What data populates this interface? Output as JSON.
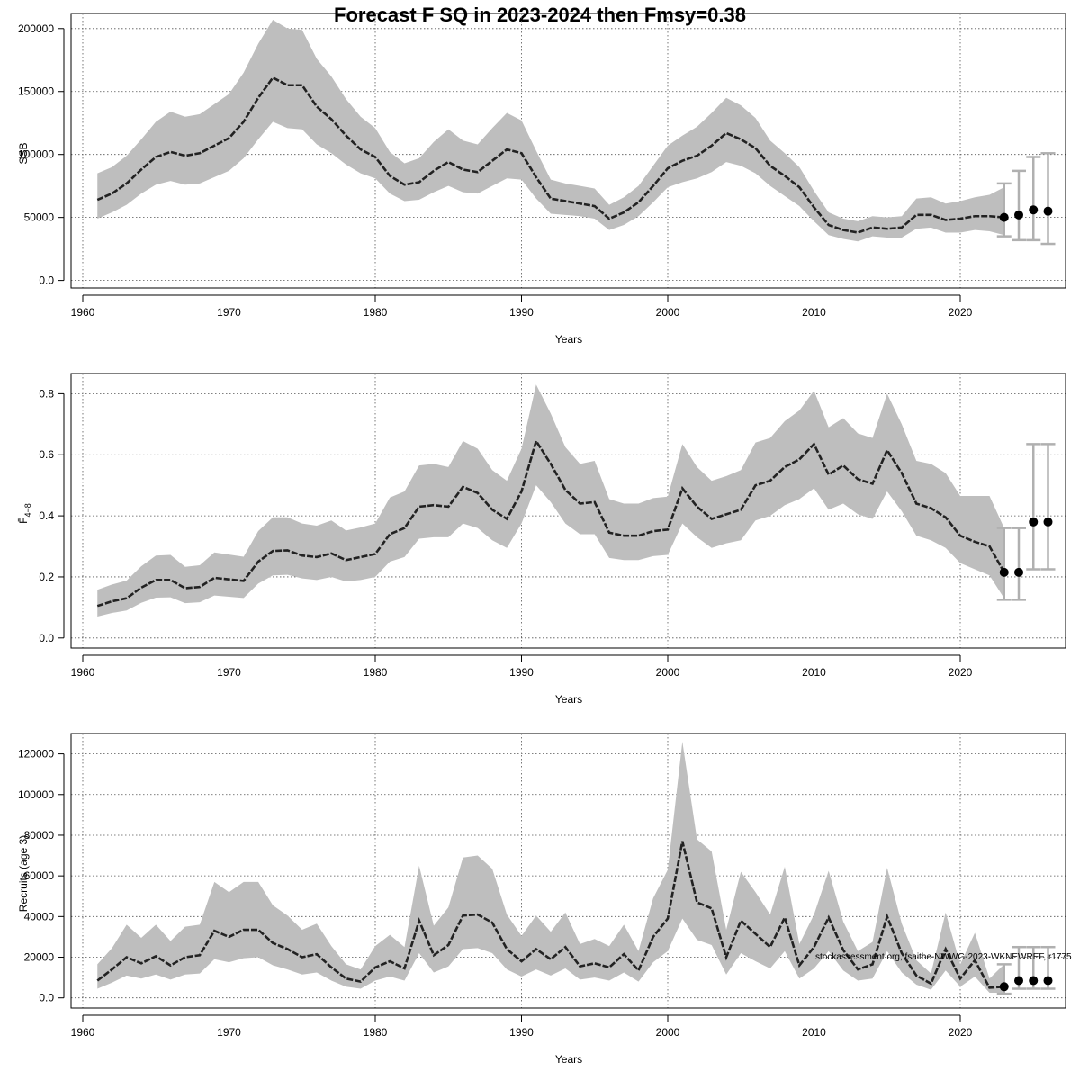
{
  "title": "Forecast F SQ in 2023-2024 then Fmsy=0.38",
  "watermark": "stockassessment.org, fsaithe-NWWG-2023-WKNEWREF, r1775",
  "chart_data": [
    {
      "id": "ssb",
      "type": "line",
      "xlabel": "Years",
      "ylabel": "SSB",
      "xlim": [
        1959.2,
        2027.2
      ],
      "ylim": [
        -6000,
        212000
      ],
      "xticks": [
        1960,
        1970,
        1980,
        1990,
        2000,
        2010,
        2020
      ],
      "yticks": [
        0,
        50000,
        100000,
        150000,
        200000
      ],
      "grid": true,
      "years": [
        1961,
        1962,
        1963,
        1964,
        1965,
        1966,
        1967,
        1968,
        1969,
        1970,
        1971,
        1972,
        1973,
        1974,
        1975,
        1976,
        1977,
        1978,
        1979,
        1980,
        1981,
        1982,
        1983,
        1984,
        1985,
        1986,
        1987,
        1988,
        1989,
        1990,
        1991,
        1992,
        1993,
        1994,
        1995,
        1996,
        1997,
        1998,
        1999,
        2000,
        2001,
        2002,
        2003,
        2004,
        2005,
        2006,
        2007,
        2008,
        2009,
        2010,
        2011,
        2012,
        2013,
        2014,
        2015,
        2016,
        2017,
        2018,
        2019,
        2020,
        2021,
        2022,
        2023
      ],
      "estimate": [
        64000,
        69000,
        77000,
        88000,
        98000,
        102000,
        99000,
        101000,
        107000,
        113000,
        126000,
        145000,
        161000,
        155000,
        155000,
        138000,
        128000,
        115000,
        104000,
        98000,
        83000,
        76000,
        78000,
        87000,
        94000,
        88000,
        86000,
        95000,
        104000,
        101000,
        82000,
        65000,
        63000,
        61000,
        59000,
        49000,
        54000,
        62000,
        75000,
        89000,
        95000,
        99000,
        107000,
        117000,
        112000,
        105000,
        91000,
        83000,
        74000,
        58000,
        44000,
        40000,
        38000,
        42000,
        41000,
        42000,
        52000,
        52000,
        48000,
        49000,
        51000,
        51000,
        50000
      ],
      "lower": [
        49000,
        54000,
        60000,
        69000,
        76000,
        79000,
        76000,
        77000,
        82000,
        87000,
        97000,
        112000,
        126000,
        121000,
        120000,
        108000,
        101000,
        92000,
        85000,
        81000,
        69000,
        63000,
        64000,
        70000,
        75000,
        70000,
        69000,
        75000,
        81000,
        80000,
        65000,
        53000,
        52000,
        51000,
        49000,
        40000,
        44000,
        51000,
        62000,
        74000,
        78000,
        81000,
        86000,
        94000,
        91000,
        85000,
        75000,
        67000,
        59000,
        47000,
        36000,
        33000,
        31000,
        35000,
        34000,
        34000,
        41000,
        42000,
        38000,
        38000,
        40000,
        39000,
        36000
      ],
      "upper": [
        85000,
        90000,
        99000,
        112000,
        126000,
        134000,
        130000,
        132000,
        140000,
        148000,
        165000,
        188000,
        207000,
        200000,
        199000,
        176000,
        162000,
        144000,
        130000,
        121000,
        102000,
        93000,
        97000,
        110000,
        120000,
        111000,
        108000,
        121000,
        133000,
        127000,
        103000,
        80000,
        77000,
        75000,
        73000,
        60000,
        66000,
        75000,
        91000,
        107000,
        115000,
        122000,
        133000,
        145000,
        139000,
        129000,
        111000,
        101000,
        90000,
        71000,
        54000,
        49000,
        47000,
        51000,
        50000,
        51000,
        65000,
        66000,
        61000,
        63000,
        66000,
        68000,
        74000
      ],
      "forecast": {
        "years": [
          2023,
          2024,
          2025,
          2026
        ],
        "median": [
          50000,
          52000,
          56000,
          55000
        ],
        "lower": [
          35000,
          32000,
          32000,
          29000
        ],
        "upper": [
          77000,
          87000,
          98000,
          101000
        ]
      }
    },
    {
      "id": "fbar",
      "type": "line",
      "xlabel": "Years",
      "ylabel": "F̄",
      "ylabel_sub": "4−8",
      "xlim": [
        1959.2,
        2027.2
      ],
      "ylim": [
        -0.033,
        0.866
      ],
      "xticks": [
        1960,
        1970,
        1980,
        1990,
        2000,
        2010,
        2020
      ],
      "yticks": [
        0.0,
        0.2,
        0.4,
        0.6,
        0.8
      ],
      "grid": true,
      "years": [
        1961,
        1962,
        1963,
        1964,
        1965,
        1966,
        1967,
        1968,
        1969,
        1970,
        1971,
        1972,
        1973,
        1974,
        1975,
        1976,
        1977,
        1978,
        1979,
        1980,
        1981,
        1982,
        1983,
        1984,
        1985,
        1986,
        1987,
        1988,
        1989,
        1990,
        1991,
        1992,
        1993,
        1994,
        1995,
        1996,
        1997,
        1998,
        1999,
        2000,
        2001,
        2002,
        2003,
        2004,
        2005,
        2006,
        2007,
        2008,
        2009,
        2010,
        2011,
        2012,
        2013,
        2014,
        2015,
        2016,
        2017,
        2018,
        2019,
        2020,
        2021,
        2022,
        2023
      ],
      "estimate": [
        0.105,
        0.12,
        0.13,
        0.165,
        0.19,
        0.19,
        0.163,
        0.167,
        0.197,
        0.192,
        0.187,
        0.25,
        0.285,
        0.287,
        0.27,
        0.265,
        0.277,
        0.255,
        0.265,
        0.275,
        0.34,
        0.36,
        0.43,
        0.435,
        0.43,
        0.495,
        0.475,
        0.42,
        0.39,
        0.48,
        0.645,
        0.57,
        0.485,
        0.44,
        0.445,
        0.345,
        0.335,
        0.335,
        0.35,
        0.355,
        0.49,
        0.43,
        0.39,
        0.405,
        0.42,
        0.5,
        0.515,
        0.56,
        0.585,
        0.635,
        0.535,
        0.565,
        0.52,
        0.505,
        0.615,
        0.54,
        0.44,
        0.425,
        0.395,
        0.335,
        0.315,
        0.3,
        0.215
      ],
      "lower": [
        0.07,
        0.082,
        0.09,
        0.115,
        0.132,
        0.133,
        0.114,
        0.117,
        0.139,
        0.135,
        0.131,
        0.178,
        0.205,
        0.207,
        0.195,
        0.19,
        0.2,
        0.185,
        0.19,
        0.2,
        0.25,
        0.265,
        0.325,
        0.33,
        0.33,
        0.375,
        0.36,
        0.32,
        0.295,
        0.375,
        0.5,
        0.445,
        0.375,
        0.34,
        0.34,
        0.262,
        0.255,
        0.255,
        0.268,
        0.272,
        0.375,
        0.33,
        0.295,
        0.31,
        0.32,
        0.385,
        0.4,
        0.435,
        0.455,
        0.49,
        0.42,
        0.44,
        0.405,
        0.39,
        0.48,
        0.415,
        0.335,
        0.32,
        0.295,
        0.245,
        0.225,
        0.205,
        0.13
      ],
      "upper": [
        0.158,
        0.175,
        0.188,
        0.235,
        0.27,
        0.272,
        0.233,
        0.238,
        0.28,
        0.273,
        0.266,
        0.35,
        0.395,
        0.395,
        0.375,
        0.368,
        0.385,
        0.352,
        0.362,
        0.375,
        0.46,
        0.48,
        0.565,
        0.57,
        0.56,
        0.645,
        0.62,
        0.55,
        0.515,
        0.62,
        0.83,
        0.735,
        0.625,
        0.57,
        0.58,
        0.455,
        0.44,
        0.44,
        0.458,
        0.463,
        0.635,
        0.56,
        0.515,
        0.53,
        0.55,
        0.64,
        0.655,
        0.71,
        0.745,
        0.81,
        0.69,
        0.72,
        0.67,
        0.655,
        0.8,
        0.7,
        0.58,
        0.57,
        0.54,
        0.465,
        0.465,
        0.465,
        0.36
      ],
      "forecast": {
        "years": [
          2023,
          2024,
          2025,
          2026
        ],
        "median": [
          0.215,
          0.215,
          0.38,
          0.38
        ],
        "lower": [
          0.125,
          0.125,
          0.225,
          0.225
        ],
        "upper": [
          0.36,
          0.36,
          0.635,
          0.635
        ]
      }
    },
    {
      "id": "recruits",
      "type": "line",
      "xlabel": "Years",
      "ylabel": "Recruits (age 3)",
      "xlim": [
        1959.2,
        2027.2
      ],
      "ylim": [
        -5000,
        130000
      ],
      "xticks": [
        1960,
        1970,
        1980,
        1990,
        2000,
        2010,
        2020
      ],
      "yticks": [
        0,
        20000,
        40000,
        60000,
        80000,
        100000,
        120000
      ],
      "grid": true,
      "years": [
        1961,
        1962,
        1963,
        1964,
        1965,
        1966,
        1967,
        1968,
        1969,
        1970,
        1971,
        1972,
        1973,
        1974,
        1975,
        1976,
        1977,
        1978,
        1979,
        1980,
        1981,
        1982,
        1983,
        1984,
        1985,
        1986,
        1987,
        1988,
        1989,
        1990,
        1991,
        1992,
        1993,
        1994,
        1995,
        1996,
        1997,
        1998,
        1999,
        2000,
        2001,
        2002,
        2003,
        2004,
        2005,
        2006,
        2007,
        2008,
        2009,
        2010,
        2011,
        2012,
        2013,
        2014,
        2015,
        2016,
        2017,
        2018,
        2019,
        2020,
        2021,
        2022,
        2023
      ],
      "estimate": [
        8500,
        14000,
        20000,
        17000,
        20500,
        16000,
        20000,
        21000,
        33000,
        30000,
        33500,
        33500,
        27000,
        24000,
        20000,
        21500,
        15000,
        9500,
        8000,
        15000,
        18000,
        14500,
        38000,
        21000,
        26000,
        40500,
        41000,
        37000,
        24000,
        18000,
        24000,
        19000,
        25000,
        15500,
        17000,
        15000,
        21500,
        13500,
        30000,
        39000,
        77000,
        47000,
        44000,
        20000,
        38000,
        31500,
        25000,
        39500,
        16000,
        25000,
        39500,
        23500,
        14000,
        16500,
        40000,
        22000,
        11000,
        7000,
        24000,
        9500,
        18500,
        5000,
        5500
      ],
      "lower": [
        4500,
        7500,
        11000,
        9500,
        11500,
        9000,
        11500,
        12000,
        19000,
        17500,
        19500,
        20000,
        16000,
        14000,
        11500,
        12500,
        8500,
        5500,
        4500,
        8500,
        10500,
        8500,
        22000,
        12500,
        15500,
        24000,
        24500,
        22000,
        14000,
        10500,
        14000,
        11000,
        14500,
        9000,
        10000,
        8500,
        12500,
        8000,
        17500,
        23000,
        39000,
        28500,
        26000,
        11500,
        22000,
        18000,
        14500,
        23000,
        9500,
        14500,
        23000,
        13500,
        8500,
        9500,
        23000,
        12500,
        6500,
        4000,
        13500,
        5500,
        10500,
        2500,
        2500
      ],
      "upper": [
        16500,
        24500,
        36000,
        29500,
        36000,
        28000,
        35000,
        36000,
        57000,
        52000,
        57000,
        57000,
        45500,
        40500,
        33500,
        36500,
        25500,
        16500,
        14000,
        25500,
        31000,
        25000,
        65000,
        35500,
        44500,
        69000,
        70000,
        63500,
        41000,
        30500,
        40500,
        32500,
        42000,
        26500,
        29000,
        25500,
        36000,
        23000,
        49000,
        63000,
        126000,
        78000,
        72000,
        33500,
        62000,
        52000,
        41000,
        64500,
        26500,
        41000,
        62500,
        37500,
        23000,
        27500,
        64000,
        36500,
        18500,
        12000,
        42000,
        16500,
        32000,
        9500,
        16500
      ],
      "forecast": {
        "years": [
          2023,
          2024,
          2025,
          2026
        ],
        "median": [
          5500,
          8500,
          8500,
          8500
        ],
        "lower": [
          2000,
          4500,
          4500,
          4500
        ],
        "upper": [
          16500,
          25000,
          25000,
          25000
        ]
      }
    }
  ]
}
